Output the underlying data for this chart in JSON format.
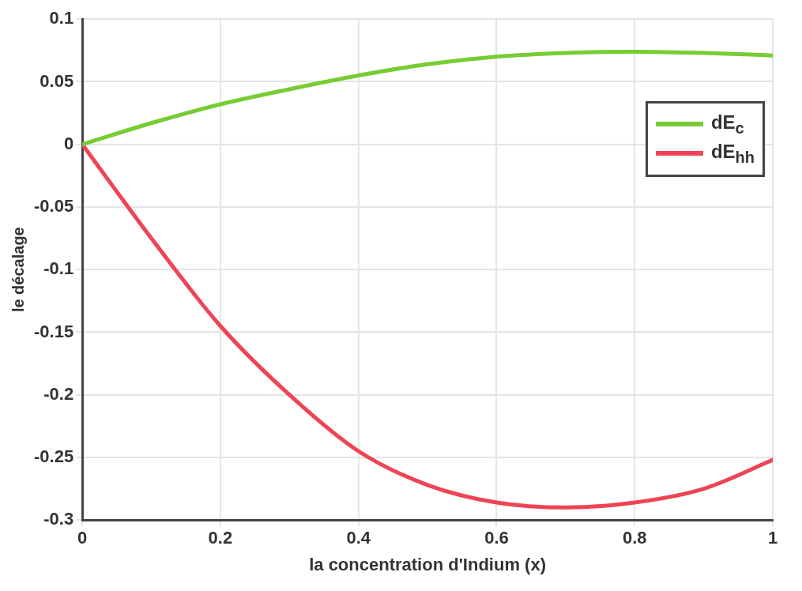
{
  "chart_data": {
    "type": "line",
    "xlabel": "la concentration d'Indium (x)",
    "ylabel": "le décalage",
    "x": [
      0,
      0.1,
      0.2,
      0.3,
      0.4,
      0.5,
      0.6,
      0.7,
      0.8,
      0.9,
      1
    ],
    "series": [
      {
        "name": "dE$_{c}$",
        "color": "#77cc33",
        "values": [
          0,
          0.017,
          0.032,
          0.044,
          0.055,
          0.064,
          0.07,
          0.073,
          0.074,
          0.073,
          0.071
        ]
      },
      {
        "name": "dE$_{hh}$",
        "color": "#ee4455",
        "values": [
          0,
          -0.075,
          -0.145,
          -0.2,
          -0.245,
          -0.272,
          -0.286,
          -0.29,
          -0.286,
          -0.275,
          -0.252
        ]
      }
    ],
    "xlim": [
      0,
      1
    ],
    "xticks": [
      0,
      0.2,
      0.4,
      0.6,
      0.8,
      1
    ],
    "ylim": [
      -0.3,
      0.1
    ],
    "yticks": [
      -0.3,
      -0.25,
      -0.2,
      -0.15,
      -0.1,
      -0.05,
      0,
      0.05,
      0.1
    ],
    "grid": true,
    "legend": "top right",
    "marker": "none",
    "line_style": "solid"
  }
}
